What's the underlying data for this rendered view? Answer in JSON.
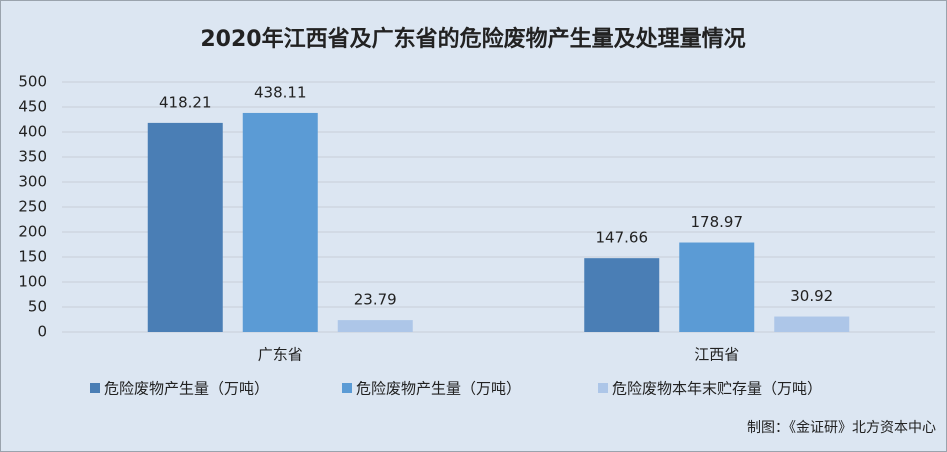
{
  "chart_data": {
    "type": "bar",
    "title": "2020年江西省及广东省的危险废物产生量及处理量情况",
    "categories": [
      "广东省",
      "江西省"
    ],
    "series": [
      {
        "name": "危险废物产生量（万吨）",
        "color": "#4a7eb5",
        "values": [
          418.21,
          147.66
        ]
      },
      {
        "name": "危险废物产生量（万吨）",
        "color": "#5b9bd5",
        "values": [
          438.11,
          178.97
        ]
      },
      {
        "name": "危险废物本年末贮存量（万吨）",
        "color": "#adc6e8",
        "values": [
          23.79,
          30.92
        ]
      }
    ],
    "ylim": [
      0,
      500
    ],
    "yticks": [
      0,
      50,
      100,
      150,
      200,
      250,
      300,
      350,
      400,
      450,
      500
    ],
    "grid": true,
    "legend": "bottom",
    "source": "制图：《金证研》北方资本中心"
  }
}
